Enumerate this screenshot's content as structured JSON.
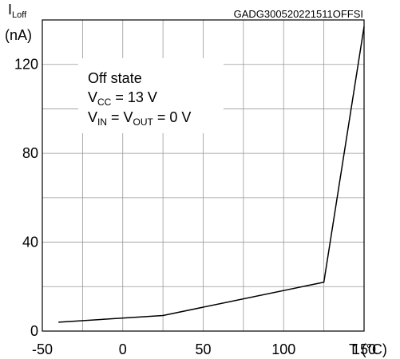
{
  "chart_data": {
    "type": "line",
    "figure_id": "GADG300520221511OFFSI",
    "ylabel_main": "I",
    "ylabel_sub": "Loff",
    "yunit": "(nA)",
    "xlabel": "T (°C)",
    "xlim": [
      -50,
      150
    ],
    "ylim": [
      0,
      140
    ],
    "xticks": [
      -50,
      0,
      50,
      100,
      150
    ],
    "yticks": [
      0,
      40,
      80,
      120
    ],
    "grid": true,
    "annotation": {
      "line1": "Off state",
      "line2_main": "V",
      "line2_sub": "CC",
      "line2_rest": " = 13 V",
      "line3_a": "V",
      "line3_a_sub": "IN",
      "line3_mid": " = V",
      "line3_b_sub": "OUT",
      "line3_rest": " = 0 V"
    },
    "series": [
      {
        "x": [
          -40,
          25,
          125,
          150
        ],
        "y": [
          4,
          7,
          22,
          137
        ]
      }
    ]
  }
}
